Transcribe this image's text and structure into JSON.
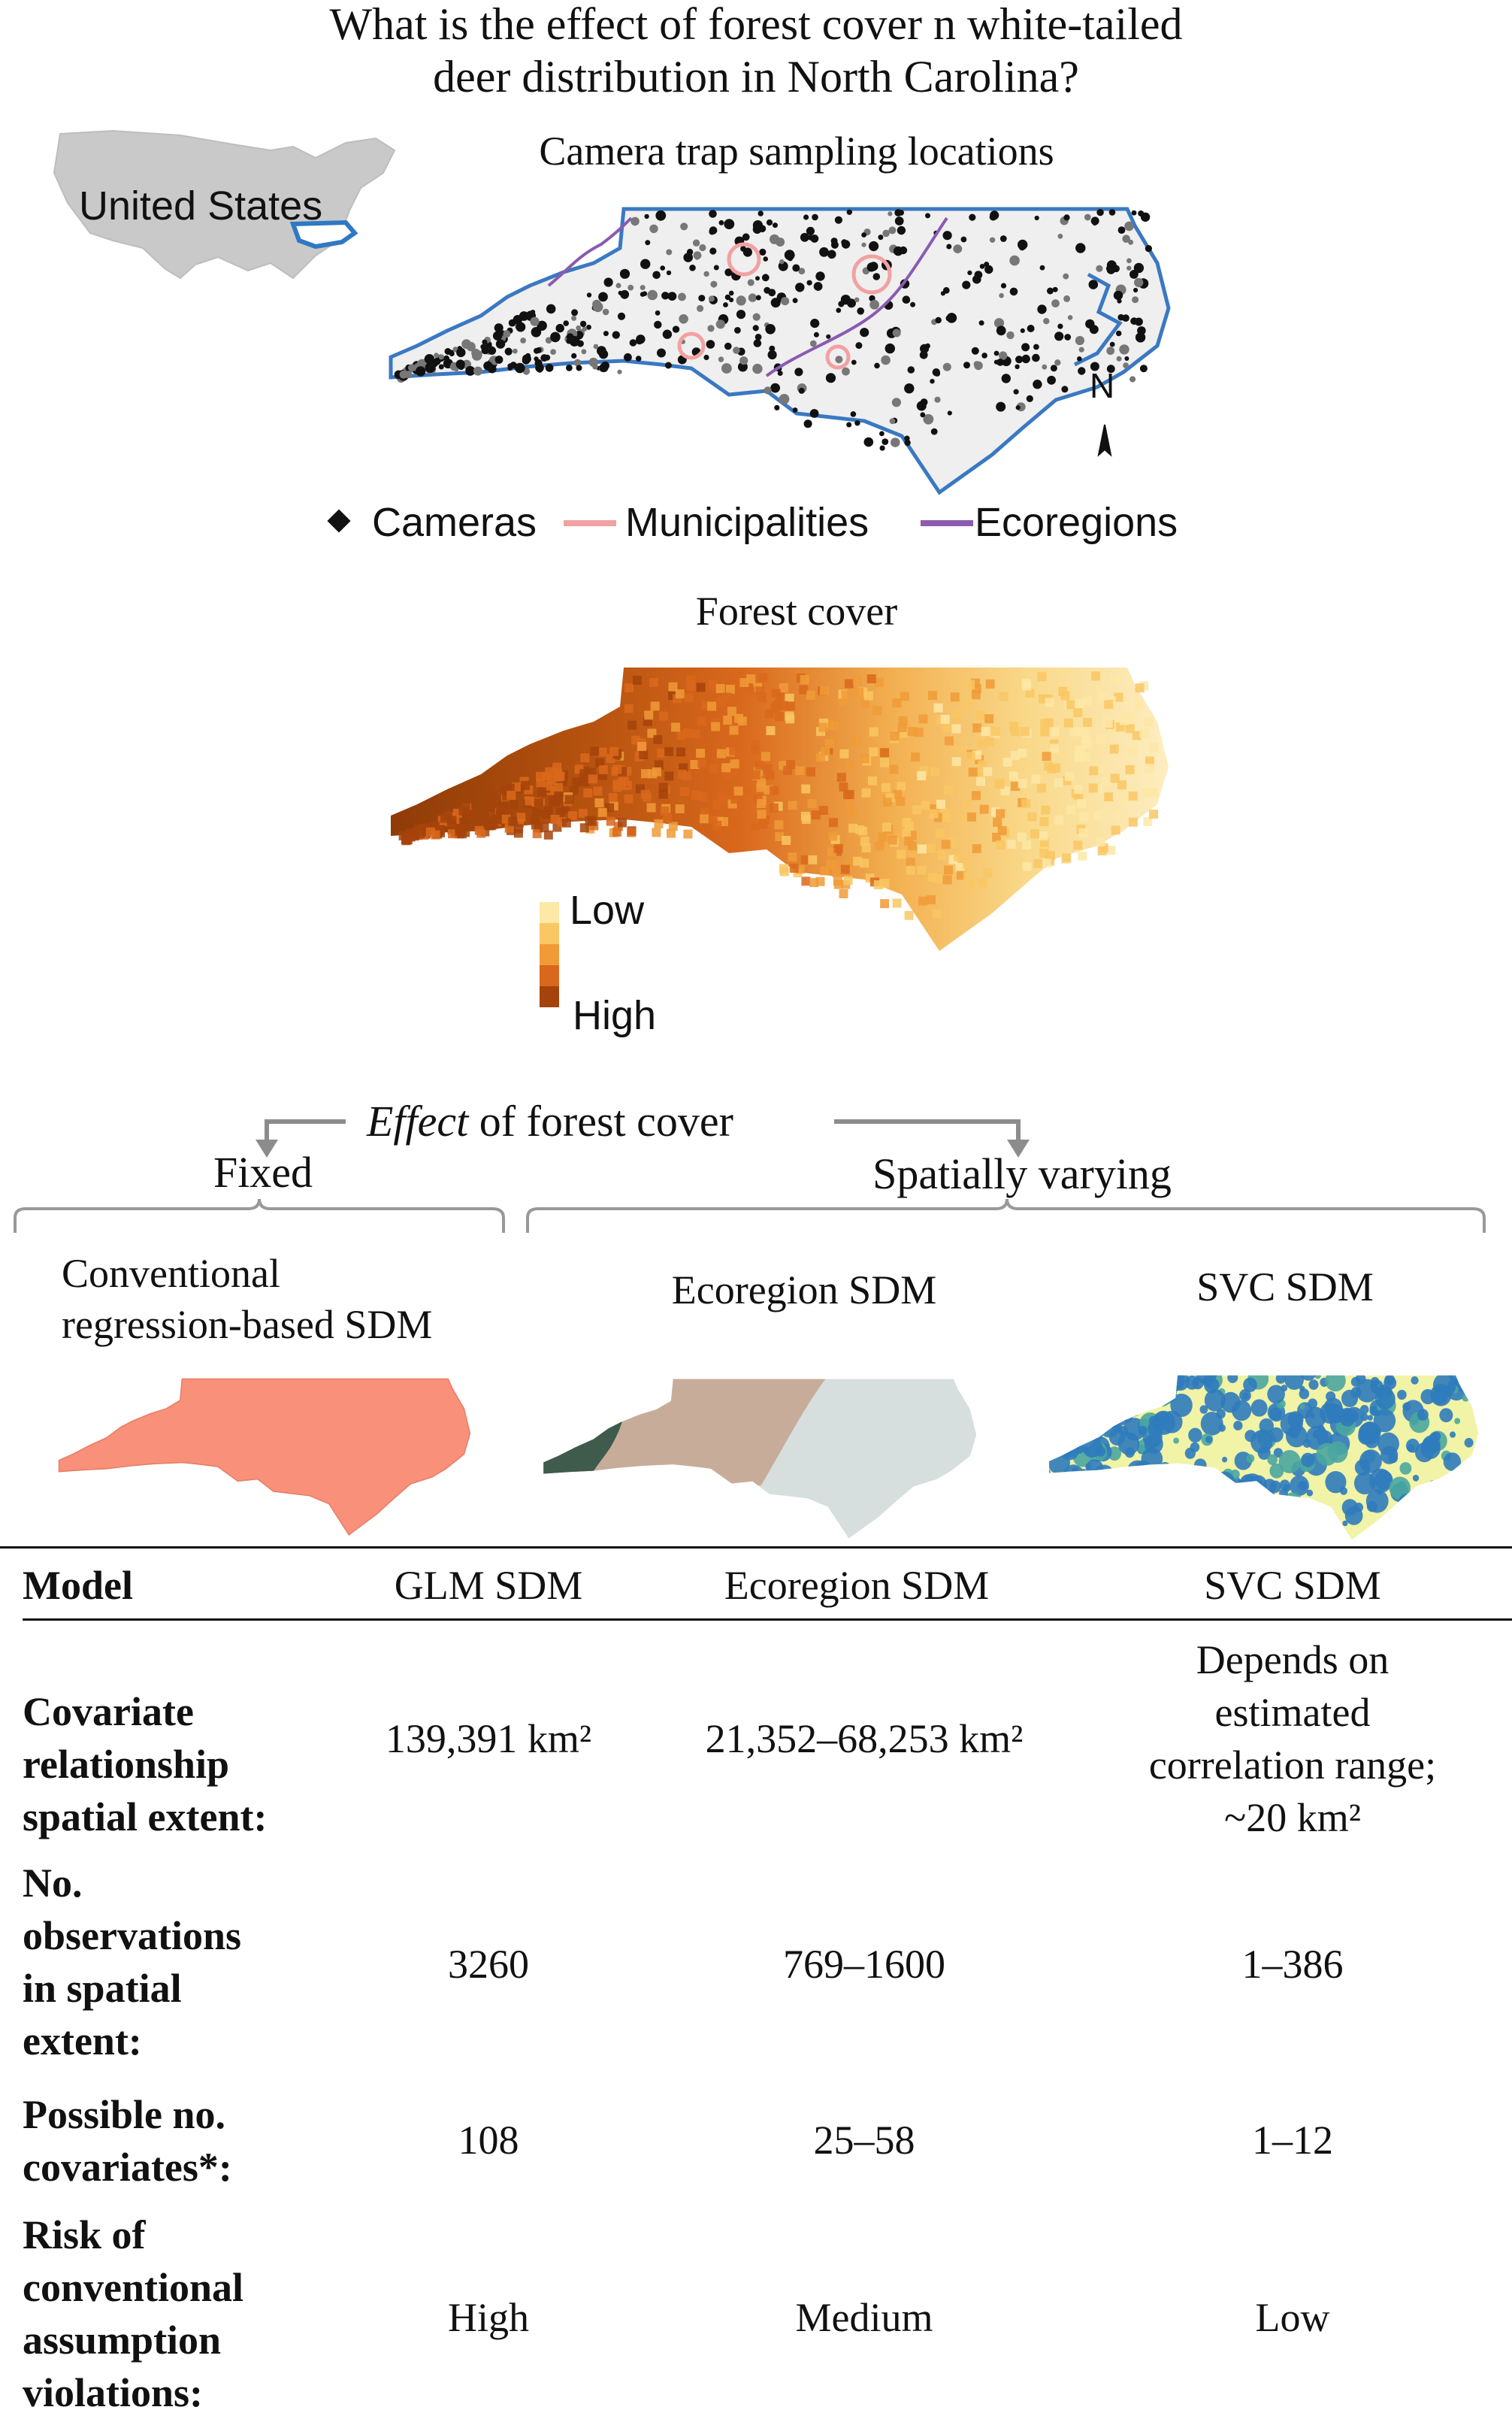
{
  "title": {
    "line1": "What is the effect of forest cover n white-tailed",
    "line2": "deer distribution in North Carolina?"
  },
  "inset_map": {
    "label": "United States"
  },
  "camera_map": {
    "title": "Camera  trap sampling locations",
    "north": "N",
    "legend": {
      "cameras": "Cameras",
      "municipalities": "Municipalities",
      "ecoregions": "Ecoregions"
    },
    "colors": {
      "outline": "#3a78c2",
      "municipalities": "#f2a1a1",
      "ecoregions": "#8a5bb0",
      "points": "#111111",
      "fill": "#efefef"
    }
  },
  "forest_map": {
    "title": "Forest cover",
    "legend_low": "Low",
    "legend_high": "High",
    "colors": [
      "#fde8a6",
      "#f9c763",
      "#f09b37",
      "#d9681c",
      "#a4430b"
    ]
  },
  "effect_section": {
    "effect_word": "Effect",
    "rest": " of  forest cover",
    "fixed": "Fixed",
    "spatially_varying": "Spatially varying",
    "models": {
      "conventional_line1": "Conventional",
      "conventional_line2": "regression-based SDM",
      "ecoregion": "Ecoregion SDM",
      "svc": "SVC SDM"
    },
    "colors": {
      "conventional": "#f9917a",
      "eco_west": "#3f5b4b",
      "eco_mid": "#c7ad99",
      "eco_east": "#d6dfdd",
      "svc_blue": "#2f7bbd",
      "svc_yellow": "#f1f3a6"
    }
  },
  "table": {
    "headers": [
      "Model",
      "GLM SDM",
      "Ecoregion SDM",
      "SVC SDM"
    ],
    "rows": [
      {
        "label": [
          "Covariate",
          "relationship",
          "spatial extent:"
        ],
        "glm": "139,391 km²",
        "eco": "21,352–68,253 km²",
        "svc": [
          "Depends on",
          "estimated",
          "correlation range;",
          "~20 km²"
        ]
      },
      {
        "label": [
          "No.",
          "observations",
          "in spatial",
          "extent:"
        ],
        "glm": "3260",
        "eco": "769–1600",
        "svc": [
          "1–386"
        ]
      },
      {
        "label": [
          "Possible no.",
          "covariates*:"
        ],
        "glm": "108",
        "eco": "25–58",
        "svc": [
          "1–12"
        ]
      },
      {
        "label": [
          "Risk of",
          "conventional",
          "assumption",
          "violations:"
        ],
        "glm": "High",
        "eco": "Medium",
        "svc": [
          "Low"
        ]
      }
    ]
  }
}
